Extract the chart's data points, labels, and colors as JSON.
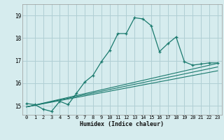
{
  "title": "",
  "xlabel": "Humidex (Indice chaleur)",
  "bg_color": "#d6ecee",
  "line_color": "#1a7a6e",
  "grid_color": "#b0cfd4",
  "xlim": [
    -0.5,
    23.5
  ],
  "ylim": [
    14.6,
    19.5
  ],
  "xticks": [
    0,
    1,
    2,
    3,
    4,
    5,
    6,
    7,
    8,
    9,
    10,
    11,
    12,
    13,
    14,
    15,
    16,
    17,
    18,
    19,
    20,
    21,
    22,
    23
  ],
  "yticks": [
    15,
    16,
    17,
    18,
    19
  ],
  "main_x": [
    0,
    1,
    2,
    3,
    4,
    5,
    6,
    7,
    8,
    9,
    10,
    11,
    12,
    13,
    14,
    15,
    16,
    17,
    18,
    19,
    20,
    21,
    22,
    23
  ],
  "main_y": [
    15.1,
    15.05,
    14.85,
    14.75,
    15.2,
    15.05,
    15.55,
    16.05,
    16.35,
    16.95,
    17.45,
    18.2,
    18.2,
    18.9,
    18.85,
    18.55,
    17.4,
    17.75,
    18.05,
    16.95,
    16.8,
    16.85,
    16.9,
    16.9
  ],
  "line1_x": [
    0,
    23
  ],
  "line1_y": [
    14.95,
    16.55
  ],
  "line2_x": [
    0,
    23
  ],
  "line2_y": [
    14.95,
    16.72
  ],
  "line3_x": [
    0,
    23
  ],
  "line3_y": [
    14.95,
    16.88
  ]
}
